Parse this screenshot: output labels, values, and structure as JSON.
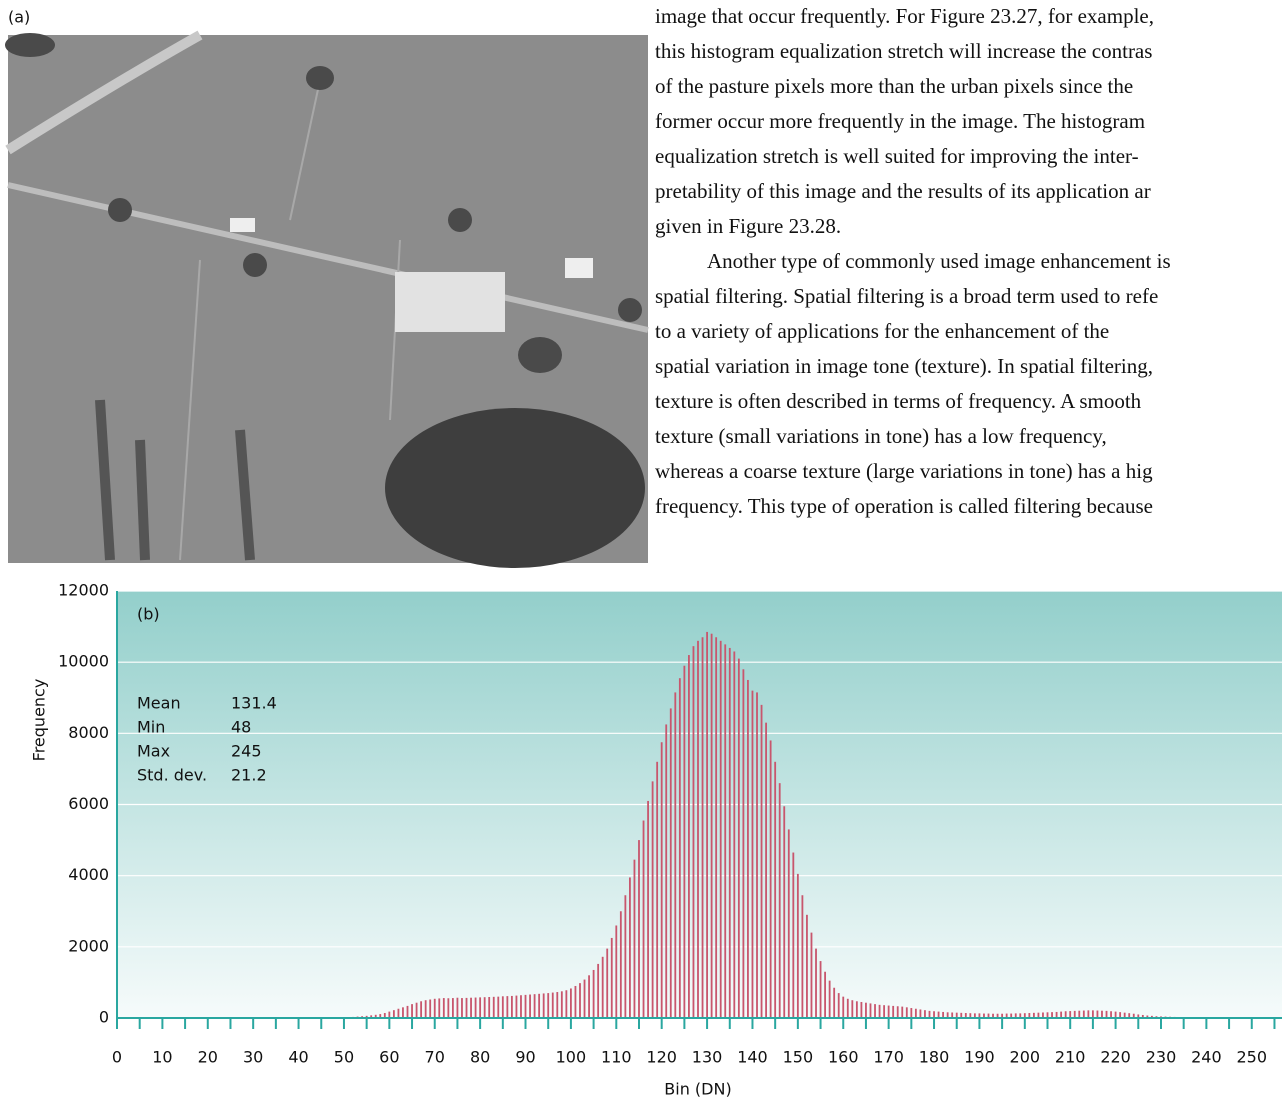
{
  "figure_label": "(a)",
  "text": {
    "lines": [
      "image that occur frequently. For Figure 23.27, for example,",
      "this histogram equalization stretch will increase the contras",
      "of the pasture pixels more than the urban pixels since the",
      "former occur more frequently in the image. The histogram",
      "equalization stretch is well suited for improving the inter-",
      "pretability of this image and the results of its application ar",
      "given in Figure 23.28.",
      "Another type of commonly used image enhancement is",
      "spatial filtering. Spatial filtering is a broad term used to refe",
      "to a variety of applications for the enhancement of the",
      "spatial variation in image tone (texture). In spatial filtering,",
      "texture is often described in terms of frequency. A smooth",
      "texture (small variations in tone) has a low frequency,",
      "whereas a coarse texture (large variations in tone) has a hig",
      "frequency. This type of operation is called filtering because"
    ]
  },
  "chart_data": {
    "type": "histogram",
    "label": "(b)",
    "x_label": "Bin (DN)",
    "y_label": "Frequency",
    "color": "#c8566d",
    "grid": true,
    "xlim": [
      0,
      256
    ],
    "ylim": [
      0,
      12000
    ],
    "xticks": [
      0,
      10,
      20,
      30,
      40,
      50,
      60,
      70,
      80,
      90,
      100,
      110,
      120,
      130,
      140,
      150,
      160,
      170,
      180,
      190,
      200,
      210,
      220,
      230,
      240,
      250
    ],
    "xminor_ticks": [
      5,
      15,
      25,
      35,
      45,
      55,
      65,
      75,
      85,
      95,
      105,
      115,
      125,
      135,
      145,
      155,
      165,
      175,
      185,
      195,
      205,
      215,
      225,
      235,
      245,
      255
    ],
    "yticks": [
      0,
      2000,
      4000,
      6000,
      8000,
      10000,
      12000
    ],
    "stats": [
      {
        "name": "Mean",
        "value": 131.4
      },
      {
        "name": "Min",
        "value": 48
      },
      {
        "name": "Max",
        "value": 245
      },
      {
        "name": "Std. dev.",
        "value": 21.2
      }
    ],
    "bins": [
      47.5,
      48.5,
      49.5,
      50.5,
      51.5,
      52.5,
      53.5,
      54.5,
      55.5,
      56.5,
      57.5,
      58.5,
      59.5,
      60.5,
      61.5,
      62.5,
      63.5,
      64.5,
      65.5,
      66.5,
      67.5,
      68.5,
      69.5,
      70.5,
      71.5,
      72.5,
      73.5,
      74.5,
      75.5,
      76.5,
      77.5,
      78.5,
      79.5,
      80.5,
      81.5,
      82.5,
      83.5,
      84.5,
      85.5,
      86.5,
      87.5,
      88.5,
      89.5,
      90.5,
      91.5,
      92.5,
      93.5,
      94.5,
      95.5,
      96.5,
      97.5,
      98.5,
      99.5,
      100.5,
      101.5,
      102.5,
      103.5,
      104.5,
      105.5,
      106.5,
      107.5,
      108.5,
      109.5,
      110.5,
      111.5,
      112.5,
      113.5,
      114.5,
      115.5,
      116.5,
      117.5,
      118.5,
      119.5,
      120.5,
      121.5,
      122.5,
      123.5,
      124.5,
      125.5,
      126.5,
      127.5,
      128.5,
      129.5,
      130.5,
      131.5,
      132.5,
      133.5,
      134.5,
      135.5,
      136.5,
      137.5,
      138.5,
      139.5,
      140.5,
      141.5,
      142.5,
      143.5,
      144.5,
      145.5,
      146.5,
      147.5,
      148.5,
      149.5,
      150.5,
      151.5,
      152.5,
      153.5,
      154.5,
      155.5,
      156.5,
      157.5,
      158.5,
      159.5,
      160.5,
      161.5,
      162.5,
      163.5,
      164.5,
      165.5,
      166.5,
      167.5,
      168.5,
      169.5,
      170.5,
      171.5,
      172.5,
      173.5,
      174.5,
      175.5,
      176.5,
      177.5,
      178.5,
      179.5,
      180.5,
      181.5,
      182.5,
      183.5,
      184.5,
      185.5,
      186.5,
      187.5,
      188.5,
      189.5,
      190.5,
      191.5,
      192.5,
      193.5,
      194.5,
      195.5,
      196.5,
      197.5,
      198.5,
      199.5,
      200.5,
      201.5,
      202.5,
      203.5,
      204.5,
      205.5,
      206.5,
      207.5,
      208.5,
      209.5,
      210.5,
      211.5,
      212.5,
      213.5,
      214.5,
      215.5,
      216.5,
      217.5,
      218.5,
      219.5,
      220.5,
      221.5,
      222.5,
      223.5,
      224.5,
      225.5,
      226.5,
      227.5,
      228.5,
      229.5,
      230.5,
      231.5,
      232.5,
      233.5,
      234.5,
      235.5,
      236.5,
      237.5,
      238.5,
      239.5,
      240.5,
      241.5,
      242.5,
      243.5,
      244.5,
      245.5
    ],
    "counts": [
      10,
      15,
      20,
      25,
      30,
      40,
      50,
      60,
      75,
      90,
      110,
      140,
      180,
      220,
      260,
      300,
      340,
      390,
      430,
      470,
      500,
      520,
      540,
      550,
      560,
      555,
      560,
      570,
      560,
      565,
      570,
      575,
      580,
      585,
      590,
      595,
      600,
      610,
      615,
      620,
      630,
      640,
      650,
      660,
      670,
      680,
      690,
      700,
      715,
      730,
      750,
      780,
      830,
      900,
      980,
      1080,
      1200,
      1350,
      1520,
      1720,
      1950,
      2250,
      2600,
      3000,
      3450,
      3950,
      4450,
      5000,
      5550,
      6100,
      6650,
      7200,
      7750,
      8250,
      8700,
      9150,
      9550,
      9900,
      10200,
      10450,
      10600,
      10700,
      10850,
      10800,
      10700,
      10600,
      10500,
      10400,
      10300,
      10100,
      9800,
      9500,
      9200,
      9150,
      8800,
      8300,
      7800,
      7200,
      6600,
      5950,
      5300,
      4650,
      4050,
      3450,
      2900,
      2400,
      1950,
      1600,
      1300,
      1050,
      850,
      700,
      600,
      540,
      500,
      470,
      450,
      430,
      410,
      390,
      370,
      360,
      350,
      340,
      330,
      320,
      300,
      280,
      260,
      240,
      220,
      200,
      190,
      180,
      170,
      160,
      155,
      150,
      145,
      140,
      135,
      130,
      130,
      125,
      125,
      120,
      120,
      120,
      125,
      125,
      130,
      130,
      135,
      140,
      145,
      150,
      155,
      160,
      165,
      170,
      180,
      190,
      195,
      200,
      205,
      210,
      215,
      215,
      210,
      205,
      200,
      190,
      180,
      165,
      150,
      135,
      120,
      100,
      85,
      70,
      60,
      50,
      45,
      40,
      35,
      30,
      28,
      25,
      22,
      20,
      18,
      16,
      15,
      13,
      12,
      10,
      8,
      5
    ]
  }
}
